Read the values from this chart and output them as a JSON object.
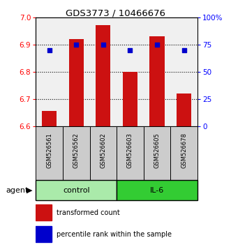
{
  "title": "GDS3773 / 10466676",
  "samples": [
    "GSM526561",
    "GSM526562",
    "GSM526602",
    "GSM526603",
    "GSM526605",
    "GSM526678"
  ],
  "bar_values": [
    6.655,
    6.92,
    6.97,
    6.8,
    6.93,
    6.72
  ],
  "bar_baseline": 6.6,
  "percentile_values": [
    70,
    75,
    75,
    70,
    75,
    70
  ],
  "ylim_left": [
    6.6,
    7.0
  ],
  "ylim_right": [
    0,
    100
  ],
  "yticks_left": [
    6.6,
    6.7,
    6.8,
    6.9,
    7.0
  ],
  "yticks_right": [
    0,
    25,
    50,
    75,
    100
  ],
  "ytick_labels_right": [
    "0",
    "25",
    "50",
    "75",
    "100%"
  ],
  "group_configs": [
    {
      "label": "control",
      "start": 0,
      "end": 3,
      "color": "#AAEAAA"
    },
    {
      "label": "IL-6",
      "start": 3,
      "end": 6,
      "color": "#33CC33"
    }
  ],
  "bar_color": "#CC1111",
  "dot_color": "#0000CC",
  "plot_bg": "#F0F0F0",
  "sample_box_color": "#CCCCCC",
  "legend_bar_label": "transformed count",
  "legend_dot_label": "percentile rank within the sample",
  "grid_yticks": [
    6.7,
    6.8,
    6.9
  ]
}
